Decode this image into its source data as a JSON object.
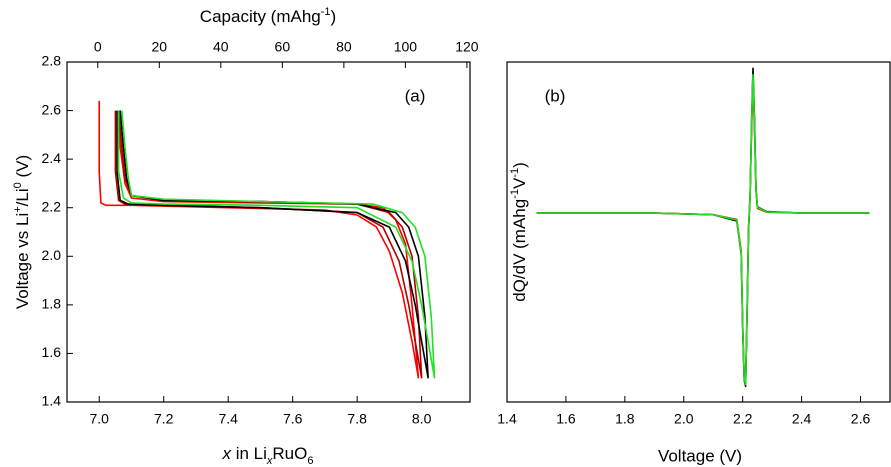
{
  "chart_data": [
    {
      "type": "line",
      "annotation": "(a)",
      "xlabel": [
        "x",
        " in Li",
        "x",
        "RuO",
        "6"
      ],
      "x2label": [
        "Capacity (mAhg",
        "-1",
        ")"
      ],
      "ylabel": [
        "Voltage vs Li",
        "+",
        "/Li",
        "0",
        " (V)"
      ],
      "xlim": [
        6.9,
        8.15
      ],
      "xticks": [
        {
          "value": 7,
          "label": "7.0"
        },
        7.2,
        7.4,
        7.6,
        7.8,
        {
          "value": 8,
          "label": "8.0"
        }
      ],
      "x2lim": [
        -10,
        121
      ],
      "x2ticks": [
        0,
        20,
        40,
        60,
        80,
        100,
        120
      ],
      "ylim": [
        1.4,
        2.8
      ],
      "yticks": [
        1.4,
        1.6,
        1.8,
        {
          "value": 2,
          "label": "2.0"
        },
        2.2,
        2.4,
        2.6,
        2.8
      ],
      "series": [
        {
          "color": "#ff0000",
          "x": [
            7.0,
            7.0,
            7.005,
            7.02,
            7.1,
            7.4,
            7.7,
            7.8,
            7.86,
            7.9,
            7.94,
            7.97,
            7.99,
            7.99,
            7.97,
            7.95,
            7.92,
            7.88,
            7.8,
            7.5,
            7.2,
            7.1,
            7.08,
            7.065,
            7.06
          ],
          "values": [
            2.64,
            2.35,
            2.22,
            2.21,
            2.21,
            2.2,
            2.19,
            2.17,
            2.12,
            2.02,
            1.85,
            1.65,
            1.5,
            1.5,
            1.8,
            2.05,
            2.15,
            2.2,
            2.215,
            2.22,
            2.225,
            2.24,
            2.3,
            2.45,
            2.6
          ]
        },
        {
          "color": "#b00000",
          "x": [
            7.05,
            7.05,
            7.06,
            7.08,
            7.2,
            7.5,
            7.8,
            7.88,
            7.93,
            7.96,
            7.98,
            8.0,
            8.0,
            7.99,
            7.97,
            7.94,
            7.9,
            7.8,
            7.5,
            7.2,
            7.1,
            7.08,
            7.07,
            7.06
          ],
          "values": [
            2.6,
            2.35,
            2.23,
            2.215,
            2.21,
            2.2,
            2.18,
            2.12,
            1.98,
            1.8,
            1.65,
            1.5,
            1.5,
            1.75,
            2.0,
            2.12,
            2.18,
            2.215,
            2.225,
            2.23,
            2.25,
            2.32,
            2.45,
            2.6
          ]
        },
        {
          "color": "#000000",
          "x": [
            7.055,
            7.055,
            7.065,
            7.09,
            7.2,
            7.5,
            7.8,
            7.9,
            7.95,
            7.98,
            8.0,
            8.02,
            8.02,
            8.01,
            7.99,
            7.96,
            7.92,
            7.8,
            7.5,
            7.2,
            7.1,
            7.085,
            7.075,
            7.065
          ],
          "values": [
            2.6,
            2.35,
            2.23,
            2.215,
            2.21,
            2.2,
            2.18,
            2.12,
            1.98,
            1.8,
            1.65,
            1.5,
            1.5,
            1.75,
            2.0,
            2.12,
            2.18,
            2.215,
            2.225,
            2.23,
            2.25,
            2.32,
            2.45,
            2.6
          ]
        },
        {
          "color": "#22e022",
          "x": [
            7.06,
            7.06,
            7.075,
            7.1,
            7.2,
            7.5,
            7.8,
            7.92,
            7.97,
            8.0,
            8.02,
            8.04,
            8.04,
            8.03,
            8.01,
            7.98,
            7.94,
            7.85,
            7.5,
            7.2,
            7.1,
            7.09,
            7.08,
            7.07
          ],
          "values": [
            2.6,
            2.35,
            2.24,
            2.22,
            2.215,
            2.21,
            2.2,
            2.12,
            1.98,
            1.8,
            1.65,
            1.5,
            1.5,
            1.75,
            2.0,
            2.12,
            2.18,
            2.215,
            2.225,
            2.235,
            2.25,
            2.32,
            2.45,
            2.6
          ]
        }
      ]
    },
    {
      "type": "line",
      "annotation": "(b)",
      "xlabel": "Voltage (V)",
      "ylabel": [
        "dQ/dV (mAhg",
        "-1",
        "V",
        "-1",
        ")"
      ],
      "xlim": [
        1.4,
        2.7
      ],
      "xticks": [
        1.4,
        1.6,
        1.8,
        {
          "value": 2,
          "label": "2.0"
        },
        2.2,
        2.4,
        2.6
      ],
      "ylim": [
        -600,
        480
      ],
      "series": [
        {
          "color": "#ff0000",
          "x": [
            1.5,
            1.9,
            2.1,
            2.18,
            2.195,
            2.2,
            2.205,
            2.21,
            2.215,
            2.22,
            2.225,
            2.23,
            2.235,
            2.24,
            2.245,
            2.25,
            2.28,
            2.4,
            2.63
          ],
          "values": [
            0,
            0,
            -5,
            -20,
            -120,
            -350,
            -520,
            -540,
            -300,
            -40,
            60,
            250,
            420,
            260,
            70,
            15,
            3,
            0,
            0
          ]
        },
        {
          "color": "#000000",
          "x": [
            1.5,
            1.9,
            2.1,
            2.18,
            2.195,
            2.2,
            2.205,
            2.21,
            2.215,
            2.22,
            2.225,
            2.23,
            2.235,
            2.24,
            2.245,
            2.25,
            2.28,
            2.4,
            2.63
          ],
          "values": [
            0,
            0,
            -5,
            -25,
            -130,
            -370,
            -530,
            -550,
            -320,
            -50,
            50,
            280,
            460,
            300,
            80,
            20,
            5,
            0,
            0
          ]
        },
        {
          "color": "#22e022",
          "x": [
            1.5,
            1.9,
            2.1,
            2.18,
            2.195,
            2.2,
            2.205,
            2.21,
            2.215,
            2.22,
            2.225,
            2.23,
            2.235,
            2.24,
            2.245,
            2.25,
            2.28,
            2.4,
            2.63
          ],
          "values": [
            0,
            0,
            -5,
            -22,
            -125,
            -360,
            -525,
            -545,
            -310,
            -45,
            55,
            270,
            440,
            280,
            75,
            18,
            4,
            0,
            0
          ]
        }
      ]
    }
  ]
}
